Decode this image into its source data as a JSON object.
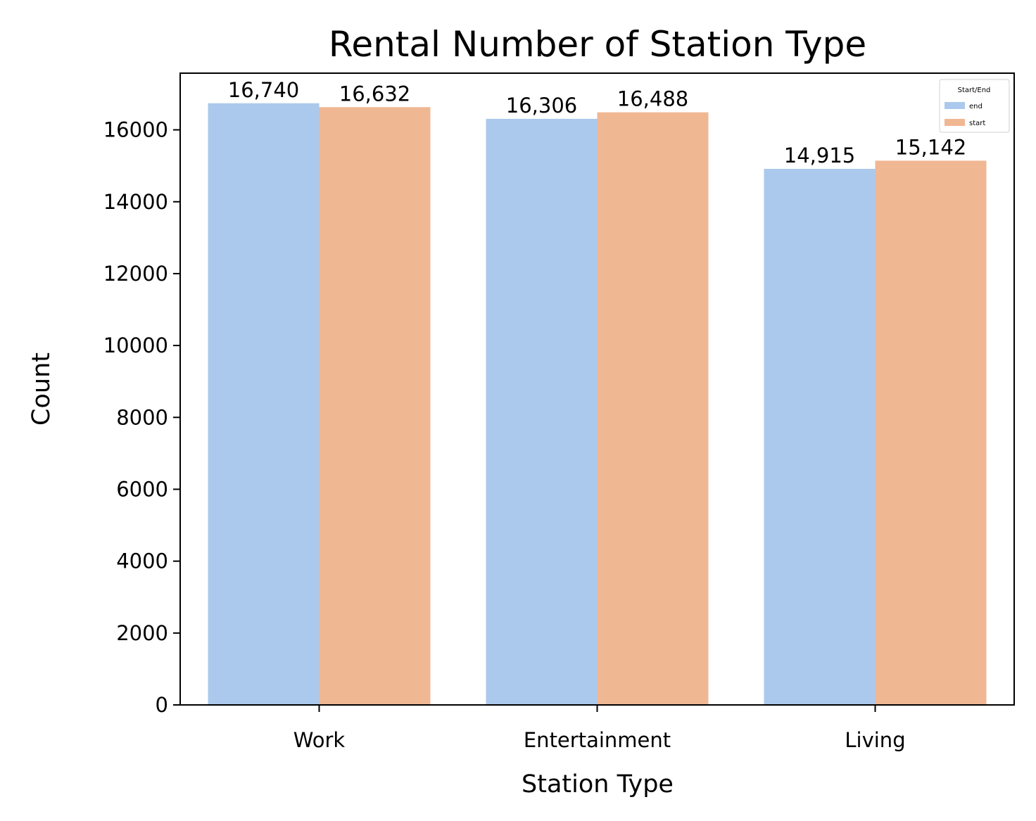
{
  "chart_data": {
    "type": "bar",
    "title": "Rental Number of Station Type",
    "xlabel": "Station Type",
    "ylabel": "Count",
    "categories": [
      "Work",
      "Entertainment",
      "Living"
    ],
    "series": [
      {
        "name": "end",
        "values": [
          16740,
          16306,
          14915
        ],
        "labels": [
          "16,740",
          "16,306",
          "14,915"
        ],
        "color": "#abc9ec"
      },
      {
        "name": "start",
        "values": [
          16632,
          16488,
          15142
        ],
        "labels": [
          "16,632",
          "16,488",
          "15,142"
        ],
        "color": "#f0b793"
      }
    ],
    "ylim": [
      0,
      17577
    ],
    "yticks": [
      0,
      2000,
      4000,
      6000,
      8000,
      10000,
      12000,
      14000,
      16000
    ],
    "legend": {
      "title": "Start/End",
      "position": "top-right"
    },
    "grid": false
  }
}
